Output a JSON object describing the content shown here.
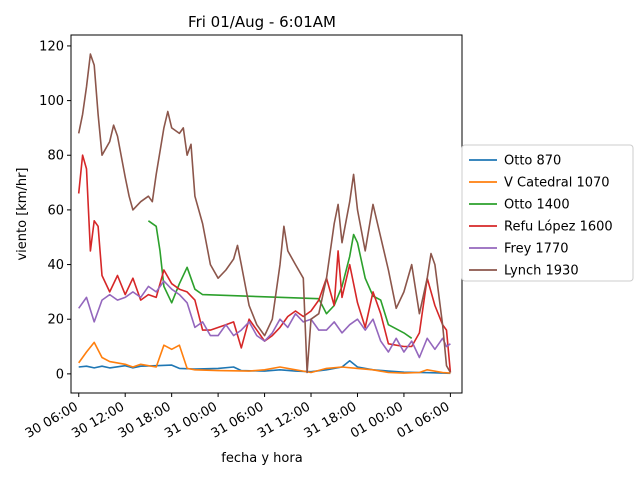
{
  "chart_data": {
    "type": "line",
    "title": "Fri 01/Aug - 6:01AM",
    "xlabel": "fecha y hora",
    "ylabel": "viento [km/hr]",
    "ylim": [
      -7,
      124
    ],
    "xlim": [
      "30 05:00",
      "01 07:30"
    ],
    "x_ticks": [
      {
        "label": "30 06:00",
        "t": "30 06:00"
      },
      {
        "label": "30 12:00",
        "t": "30 12:00"
      },
      {
        "label": "30 18:00",
        "t": "30 18:00"
      },
      {
        "label": "31 00:00",
        "t": "31 00:00"
      },
      {
        "label": "31 06:00",
        "t": "31 06:00"
      },
      {
        "label": "31 12:00",
        "t": "31 12:00"
      },
      {
        "label": "31 18:00",
        "t": "31 18:00"
      },
      {
        "label": "01 00:00",
        "t": "01 00:00"
      },
      {
        "label": "01 06:00",
        "t": "01 06:00"
      }
    ],
    "y_ticks": [
      0,
      20,
      40,
      60,
      80,
      100,
      120
    ],
    "grid": false,
    "legend": "outside-right",
    "series": [
      {
        "name": "Otto 870",
        "color": "#1f77b4",
        "points": [
          [
            "30 06:00",
            2.5
          ],
          [
            "30 07:00",
            2.8
          ],
          [
            "30 08:00",
            2.2
          ],
          [
            "30 09:00",
            2.8
          ],
          [
            "30 10:00",
            2.2
          ],
          [
            "30 12:00",
            3.0
          ],
          [
            "30 13:00",
            2.2
          ],
          [
            "30 14:00",
            2.8
          ],
          [
            "30 16:00",
            3.0
          ],
          [
            "30 18:00",
            3.2
          ],
          [
            "30 19:00",
            2.0
          ],
          [
            "30 21:00",
            1.8
          ],
          [
            "31 00:00",
            2.0
          ],
          [
            "31 02:00",
            2.5
          ],
          [
            "31 03:00",
            1.2
          ],
          [
            "31 06:00",
            1.0
          ],
          [
            "31 08:00",
            1.5
          ],
          [
            "31 10:00",
            1.0
          ],
          [
            "31 12:00",
            0.8
          ],
          [
            "31 14:00",
            1.5
          ],
          [
            "31 16:00",
            2.5
          ],
          [
            "31 17:00",
            4.8
          ],
          [
            "31 18:00",
            2.5
          ],
          [
            "31 20:00",
            1.5
          ],
          [
            "31 22:00",
            1.0
          ],
          [
            "01 00:00",
            0.6
          ],
          [
            "01 02:00",
            0.5
          ],
          [
            "01 04:00",
            0.4
          ],
          [
            "01 05:00",
            0.3
          ],
          [
            "01 06:00",
            0.2
          ]
        ]
      },
      {
        "name": "V Catedral 1070",
        "color": "#ff7f0e",
        "points": [
          [
            "30 06:00",
            4.0
          ],
          [
            "30 07:00",
            8.0
          ],
          [
            "30 08:00",
            11.5
          ],
          [
            "30 09:00",
            6.0
          ],
          [
            "30 10:00",
            4.5
          ],
          [
            "30 12:00",
            3.5
          ],
          [
            "30 13:00",
            2.5
          ],
          [
            "30 14:00",
            3.5
          ],
          [
            "30 16:00",
            2.5
          ],
          [
            "30 17:00",
            10.5
          ],
          [
            "30 18:00",
            9.0
          ],
          [
            "30 19:00",
            10.5
          ],
          [
            "30 20:00",
            2.0
          ],
          [
            "30 21:00",
            1.5
          ],
          [
            "31 00:00",
            1.2
          ],
          [
            "31 04:00",
            1.0
          ],
          [
            "31 06:00",
            1.5
          ],
          [
            "31 08:00",
            2.5
          ],
          [
            "31 10:00",
            1.5
          ],
          [
            "31 12:00",
            0.5
          ],
          [
            "31 14:00",
            2.0
          ],
          [
            "31 16:00",
            2.5
          ],
          [
            "31 18:00",
            2.0
          ],
          [
            "31 20:00",
            1.5
          ],
          [
            "31 22:00",
            0.5
          ],
          [
            "01 00:00",
            0.3
          ],
          [
            "01 02:00",
            0.5
          ],
          [
            "01 03:00",
            1.5
          ],
          [
            "01 05:00",
            0.5
          ],
          [
            "01 06:00",
            0.3
          ]
        ]
      },
      {
        "name": "Otto 1400",
        "color": "#2ca02c",
        "points": [
          [
            "30 15:00",
            56.0
          ],
          [
            "30 16:00",
            54.0
          ],
          [
            "30 16:30",
            45.0
          ],
          [
            "30 17:00",
            32.0
          ],
          [
            "30 18:00",
            26.0
          ],
          [
            "30 19:00",
            33.0
          ],
          [
            "30 20:00",
            39.0
          ],
          [
            "30 21:00",
            31.0
          ],
          [
            "30 22:00",
            29.0
          ],
          [
            "31 13:00",
            27.5
          ],
          [
            "31 14:00",
            22.0
          ],
          [
            "31 15:00",
            25.0
          ],
          [
            "31 16:00",
            32.0
          ],
          [
            "31 17:00",
            43.0
          ],
          [
            "31 17:30",
            51.0
          ],
          [
            "31 18:00",
            48.0
          ],
          [
            "31 19:00",
            35.0
          ],
          [
            "31 20:00",
            28.5
          ],
          [
            "31 21:00",
            27.0
          ],
          [
            "31 22:00",
            18.0
          ],
          [
            "01 00:00",
            15.0
          ],
          [
            "01 01:00",
            13.0
          ]
        ]
      },
      {
        "name": "Refu López 1600",
        "color": "#d62728",
        "points": [
          [
            "30 06:00",
            66.0
          ],
          [
            "30 06:30",
            80.0
          ],
          [
            "30 07:00",
            75.0
          ],
          [
            "30 07:30",
            45.0
          ],
          [
            "30 08:00",
            56.0
          ],
          [
            "30 08:30",
            54.0
          ],
          [
            "30 09:00",
            36.0
          ],
          [
            "30 10:00",
            30.0
          ],
          [
            "30 11:00",
            36.0
          ],
          [
            "30 12:00",
            29.0
          ],
          [
            "30 13:00",
            35.0
          ],
          [
            "30 14:00",
            27.0
          ],
          [
            "30 15:00",
            29.0
          ],
          [
            "30 16:00",
            28.0
          ],
          [
            "30 17:00",
            38.0
          ],
          [
            "30 18:00",
            33.0
          ],
          [
            "30 19:00",
            31.0
          ],
          [
            "30 20:00",
            30.0
          ],
          [
            "30 21:00",
            27.0
          ],
          [
            "30 22:00",
            16.0
          ],
          [
            "30 23:00",
            16.0
          ],
          [
            "31 01:00",
            18.0
          ],
          [
            "31 02:00",
            19.0
          ],
          [
            "31 03:00",
            9.5
          ],
          [
            "31 04:00",
            20.0
          ],
          [
            "31 05:00",
            16.0
          ],
          [
            "31 06:00",
            12.0
          ],
          [
            "31 07:00",
            14.0
          ],
          [
            "31 08:00",
            17.0
          ],
          [
            "31 09:00",
            21.0
          ],
          [
            "31 10:00",
            23.0
          ],
          [
            "31 11:00",
            21.0
          ],
          [
            "31 12:00",
            23.0
          ],
          [
            "31 13:00",
            27.0
          ],
          [
            "31 14:00",
            35.0
          ],
          [
            "31 15:00",
            25.0
          ],
          [
            "31 15:30",
            45.0
          ],
          [
            "31 16:00",
            28.0
          ],
          [
            "31 17:00",
            40.0
          ],
          [
            "31 18:00",
            26.0
          ],
          [
            "31 19:00",
            17.0
          ],
          [
            "31 20:00",
            30.0
          ],
          [
            "31 21:00",
            22.0
          ],
          [
            "31 22:00",
            11.0
          ],
          [
            "01 00:00",
            10.0
          ],
          [
            "01 01:00",
            10.0
          ],
          [
            "01 02:00",
            15.0
          ],
          [
            "01 03:00",
            35.0
          ],
          [
            "01 04:00",
            25.0
          ],
          [
            "01 05:00",
            18.0
          ],
          [
            "01 05:30",
            16.0
          ],
          [
            "01 06:00",
            0.5
          ]
        ]
      },
      {
        "name": "Frey 1770",
        "color": "#9467bd",
        "points": [
          [
            "30 06:00",
            24.0
          ],
          [
            "30 07:00",
            28.0
          ],
          [
            "30 08:00",
            19.0
          ],
          [
            "30 09:00",
            27.0
          ],
          [
            "30 10:00",
            29.0
          ],
          [
            "30 11:00",
            27.0
          ],
          [
            "30 12:00",
            28.0
          ],
          [
            "30 13:00",
            30.0
          ],
          [
            "30 14:00",
            28.0
          ],
          [
            "30 15:00",
            32.0
          ],
          [
            "30 16:00",
            30.0
          ],
          [
            "30 17:00",
            34.0
          ],
          [
            "30 18:00",
            31.0
          ],
          [
            "30 19:00",
            29.0
          ],
          [
            "30 20:00",
            26.0
          ],
          [
            "30 21:00",
            17.0
          ],
          [
            "30 22:00",
            19.0
          ],
          [
            "30 23:00",
            14.0
          ],
          [
            "31 00:00",
            14.0
          ],
          [
            "31 01:00",
            18.0
          ],
          [
            "31 02:00",
            14.0
          ],
          [
            "31 03:00",
            16.0
          ],
          [
            "31 04:00",
            19.0
          ],
          [
            "31 05:00",
            14.0
          ],
          [
            "31 06:00",
            12.0
          ],
          [
            "31 07:00",
            15.0
          ],
          [
            "31 08:00",
            20.0
          ],
          [
            "31 09:00",
            17.0
          ],
          [
            "31 10:00",
            22.0
          ],
          [
            "31 11:00",
            19.0
          ],
          [
            "31 12:00",
            20.0
          ],
          [
            "31 13:00",
            16.0
          ],
          [
            "31 14:00",
            16.0
          ],
          [
            "31 15:00",
            19.0
          ],
          [
            "31 16:00",
            15.0
          ],
          [
            "31 17:00",
            18.0
          ],
          [
            "31 18:00",
            20.0
          ],
          [
            "31 19:00",
            16.0
          ],
          [
            "31 20:00",
            20.0
          ],
          [
            "31 21:00",
            12.0
          ],
          [
            "31 22:00",
            8.0
          ],
          [
            "31 23:00",
            13.0
          ],
          [
            "01 00:00",
            8.0
          ],
          [
            "01 01:00",
            12.0
          ],
          [
            "01 02:00",
            6.0
          ],
          [
            "01 03:00",
            13.0
          ],
          [
            "01 04:00",
            9.0
          ],
          [
            "01 05:00",
            13.0
          ],
          [
            "01 05:30",
            10.0
          ],
          [
            "01 06:00",
            11.0
          ]
        ]
      },
      {
        "name": "Lynch 1930",
        "color": "#8c564b",
        "points": [
          [
            "30 06:00",
            88.0
          ],
          [
            "30 06:30",
            95.0
          ],
          [
            "30 07:00",
            105.0
          ],
          [
            "30 07:30",
            117.0
          ],
          [
            "30 08:00",
            113.0
          ],
          [
            "30 08:30",
            95.0
          ],
          [
            "30 09:00",
            80.0
          ],
          [
            "30 10:00",
            85.0
          ],
          [
            "30 10:30",
            91.0
          ],
          [
            "30 11:00",
            87.0
          ],
          [
            "30 12:00",
            72.0
          ],
          [
            "30 12:30",
            65.0
          ],
          [
            "30 13:00",
            60.0
          ],
          [
            "30 14:00",
            63.0
          ],
          [
            "30 15:00",
            65.0
          ],
          [
            "30 15:30",
            63.0
          ],
          [
            "30 16:00",
            73.0
          ],
          [
            "30 17:00",
            90.0
          ],
          [
            "30 17:30",
            96.0
          ],
          [
            "30 18:00",
            90.0
          ],
          [
            "30 19:00",
            88.0
          ],
          [
            "30 19:30",
            90.0
          ],
          [
            "30 20:00",
            80.0
          ],
          [
            "30 20:30",
            84.0
          ],
          [
            "30 21:00",
            65.0
          ],
          [
            "30 22:00",
            55.0
          ],
          [
            "30 23:00",
            40.0
          ],
          [
            "31 00:00",
            35.0
          ],
          [
            "31 01:00",
            38.0
          ],
          [
            "31 02:00",
            42.0
          ],
          [
            "31 02:30",
            47.0
          ],
          [
            "31 03:00",
            40.0
          ],
          [
            "31 04:00",
            25.0
          ],
          [
            "31 05:00",
            18.0
          ],
          [
            "31 06:00",
            14.0
          ],
          [
            "31 07:00",
            20.0
          ],
          [
            "31 08:00",
            40.0
          ],
          [
            "31 08:30",
            54.0
          ],
          [
            "31 09:00",
            45.0
          ],
          [
            "31 10:00",
            40.0
          ],
          [
            "31 11:00",
            35.0
          ],
          [
            "31 11:30",
            0.5
          ],
          [
            "31 12:00",
            20.0
          ],
          [
            "31 13:00",
            22.0
          ],
          [
            "31 14:00",
            35.0
          ],
          [
            "31 15:00",
            55.0
          ],
          [
            "31 15:30",
            62.0
          ],
          [
            "31 16:00",
            48.0
          ],
          [
            "31 17:00",
            63.0
          ],
          [
            "31 17:30",
            73.0
          ],
          [
            "31 18:00",
            60.0
          ],
          [
            "31 19:00",
            45.0
          ],
          [
            "31 20:00",
            62.0
          ],
          [
            "31 21:00",
            50.0
          ],
          [
            "31 22:00",
            38.0
          ],
          [
            "31 23:00",
            24.0
          ],
          [
            "01 00:00",
            30.0
          ],
          [
            "01 01:00",
            40.0
          ],
          [
            "01 02:00",
            22.0
          ],
          [
            "01 03:00",
            35.0
          ],
          [
            "01 03:30",
            44.0
          ],
          [
            "01 04:00",
            40.0
          ],
          [
            "01 05:00",
            18.0
          ],
          [
            "01 05:30",
            3.0
          ],
          [
            "01 06:00",
            0.5
          ]
        ]
      }
    ]
  }
}
